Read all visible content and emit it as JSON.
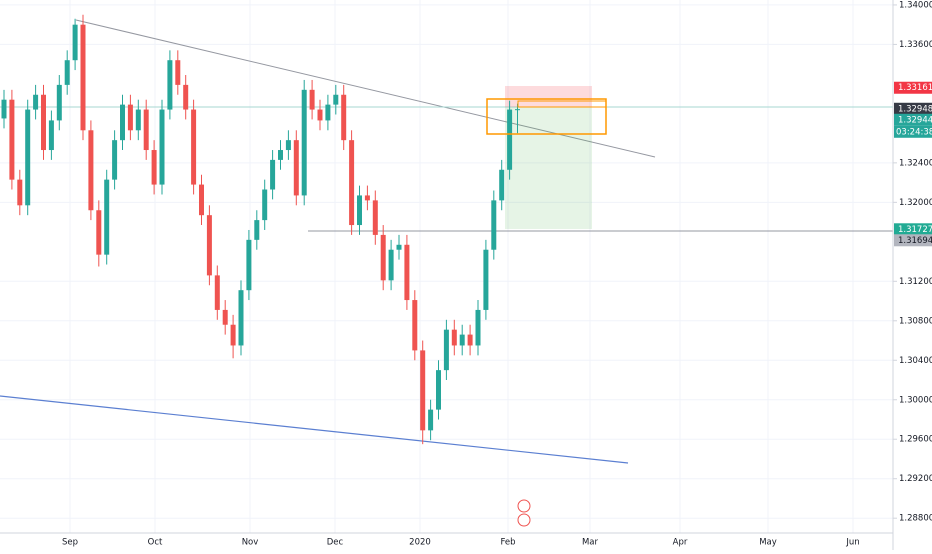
{
  "chart_data": {
    "type": "candlestick",
    "up_color": "#26a69a",
    "down_color": "#ef5350",
    "ylim": [
      1.2865,
      1.3405
    ],
    "yticks": [
      {
        "value": 1.34,
        "label": "1.34000"
      },
      {
        "value": 1.336,
        "label": "1.33600"
      },
      {
        "value": 1.324,
        "label": "1.32400"
      },
      {
        "value": 1.32,
        "label": "1.32000"
      },
      {
        "value": 1.312,
        "label": "1.31200"
      },
      {
        "value": 1.308,
        "label": "1.30800"
      },
      {
        "value": 1.304,
        "label": "1.30400"
      },
      {
        "value": 1.3,
        "label": "1.30000"
      },
      {
        "value": 1.296,
        "label": "1.29600"
      },
      {
        "value": 1.292,
        "label": "1.29200"
      },
      {
        "value": 1.288,
        "label": "1.28800"
      }
    ],
    "xticks": [
      "Sep",
      "Oct",
      "Nov",
      "Dec",
      "2020",
      "Feb",
      "Mar",
      "Apr",
      "May",
      "Jun"
    ],
    "price_labels": [
      {
        "value": 1.33161,
        "color": "#f23645"
      },
      {
        "value": 1.32948,
        "color": "#363a45"
      },
      {
        "value": 1.32944,
        "color": "#26a69a"
      },
      {
        "value": 1.31727,
        "color": "#22ab94"
      },
      {
        "value": 1.31694,
        "color": "#b2b5be"
      }
    ],
    "countdown": "03:24:38",
    "candles": [
      [
        1.3285,
        1.3314,
        1.3275,
        1.3304
      ],
      [
        1.3304,
        1.3314,
        1.3213,
        1.3223
      ],
      [
        1.3223,
        1.3233,
        1.3187,
        1.3197
      ],
      [
        1.3197,
        1.3304,
        1.3187,
        1.3294
      ],
      [
        1.3294,
        1.3319,
        1.3284,
        1.3309
      ],
      [
        1.3309,
        1.3319,
        1.3243,
        1.3253
      ],
      [
        1.3253,
        1.3293,
        1.3243,
        1.3283
      ],
      [
        1.3283,
        1.3329,
        1.3273,
        1.3319
      ],
      [
        1.3319,
        1.3354,
        1.3309,
        1.3344
      ],
      [
        1.3344,
        1.3386,
        1.3334,
        1.338
      ],
      [
        1.338,
        1.339,
        1.3263,
        1.3273
      ],
      [
        1.3273,
        1.3283,
        1.3182,
        1.3192
      ],
      [
        1.3192,
        1.3202,
        1.3135,
        1.3147
      ],
      [
        1.3147,
        1.3233,
        1.3137,
        1.3223
      ],
      [
        1.3223,
        1.3273,
        1.3213,
        1.3263
      ],
      [
        1.3263,
        1.3309,
        1.3253,
        1.3299
      ],
      [
        1.3299,
        1.3309,
        1.3263,
        1.3273
      ],
      [
        1.3273,
        1.3304,
        1.3263,
        1.3294
      ],
      [
        1.3294,
        1.3304,
        1.3243,
        1.3253
      ],
      [
        1.3253,
        1.3263,
        1.3208,
        1.3218
      ],
      [
        1.3218,
        1.3304,
        1.3208,
        1.3294
      ],
      [
        1.3294,
        1.3354,
        1.3284,
        1.3344
      ],
      [
        1.3344,
        1.3354,
        1.3309,
        1.3319
      ],
      [
        1.3319,
        1.3329,
        1.3284,
        1.3294
      ],
      [
        1.3294,
        1.3304,
        1.3208,
        1.3218
      ],
      [
        1.3218,
        1.3228,
        1.3177,
        1.3187
      ],
      [
        1.3187,
        1.3197,
        1.3116,
        1.3126
      ],
      [
        1.3126,
        1.3136,
        1.3081,
        1.3091
      ],
      [
        1.3091,
        1.3101,
        1.3066,
        1.3076
      ],
      [
        1.3076,
        1.3086,
        1.3042,
        1.3055
      ],
      [
        1.3055,
        1.3121,
        1.3045,
        1.3111
      ],
      [
        1.3111,
        1.3172,
        1.3101,
        1.3162
      ],
      [
        1.3162,
        1.3192,
        1.3152,
        1.3182
      ],
      [
        1.3182,
        1.3223,
        1.3172,
        1.3213
      ],
      [
        1.3213,
        1.3253,
        1.3203,
        1.3243
      ],
      [
        1.3243,
        1.3263,
        1.3233,
        1.3253
      ],
      [
        1.3253,
        1.3273,
        1.3243,
        1.3263
      ],
      [
        1.3263,
        1.3273,
        1.3197,
        1.3207
      ],
      [
        1.3207,
        1.3324,
        1.3197,
        1.3314
      ],
      [
        1.3314,
        1.3324,
        1.3284,
        1.3294
      ],
      [
        1.3294,
        1.3304,
        1.3273,
        1.3283
      ],
      [
        1.3283,
        1.3309,
        1.3273,
        1.3299
      ],
      [
        1.3299,
        1.3319,
        1.3289,
        1.3309
      ],
      [
        1.3309,
        1.3319,
        1.3253,
        1.3263
      ],
      [
        1.3263,
        1.3273,
        1.3167,
        1.3177
      ],
      [
        1.3177,
        1.3217,
        1.3167,
        1.3207
      ],
      [
        1.3207,
        1.3217,
        1.3192,
        1.3202
      ],
      [
        1.3202,
        1.3212,
        1.3157,
        1.3167
      ],
      [
        1.3167,
        1.3177,
        1.3111,
        1.3121
      ],
      [
        1.3121,
        1.3162,
        1.3111,
        1.3152
      ],
      [
        1.3152,
        1.3167,
        1.3142,
        1.3157
      ],
      [
        1.3157,
        1.3167,
        1.3091,
        1.3101
      ],
      [
        1.3101,
        1.3111,
        1.304,
        1.305
      ],
      [
        1.305,
        1.306,
        1.2955,
        1.2969
      ],
      [
        1.2969,
        1.3,
        1.2959,
        1.299
      ],
      [
        1.299,
        1.304,
        1.298,
        1.303
      ],
      [
        1.303,
        1.3081,
        1.302,
        1.3071
      ],
      [
        1.3071,
        1.3081,
        1.3045,
        1.3055
      ],
      [
        1.3055,
        1.3076,
        1.3045,
        1.3066
      ],
      [
        1.3066,
        1.3076,
        1.3045,
        1.3055
      ],
      [
        1.3055,
        1.3101,
        1.3045,
        1.3091
      ],
      [
        1.3091,
        1.3162,
        1.3081,
        1.3152
      ],
      [
        1.3152,
        1.3212,
        1.3142,
        1.3202
      ],
      [
        1.3202,
        1.3243,
        1.3192,
        1.3233
      ],
      [
        1.3233,
        1.3303,
        1.3223,
        1.3294
      ],
      [
        1.3294,
        1.33,
        1.327,
        1.32944
      ]
    ]
  }
}
